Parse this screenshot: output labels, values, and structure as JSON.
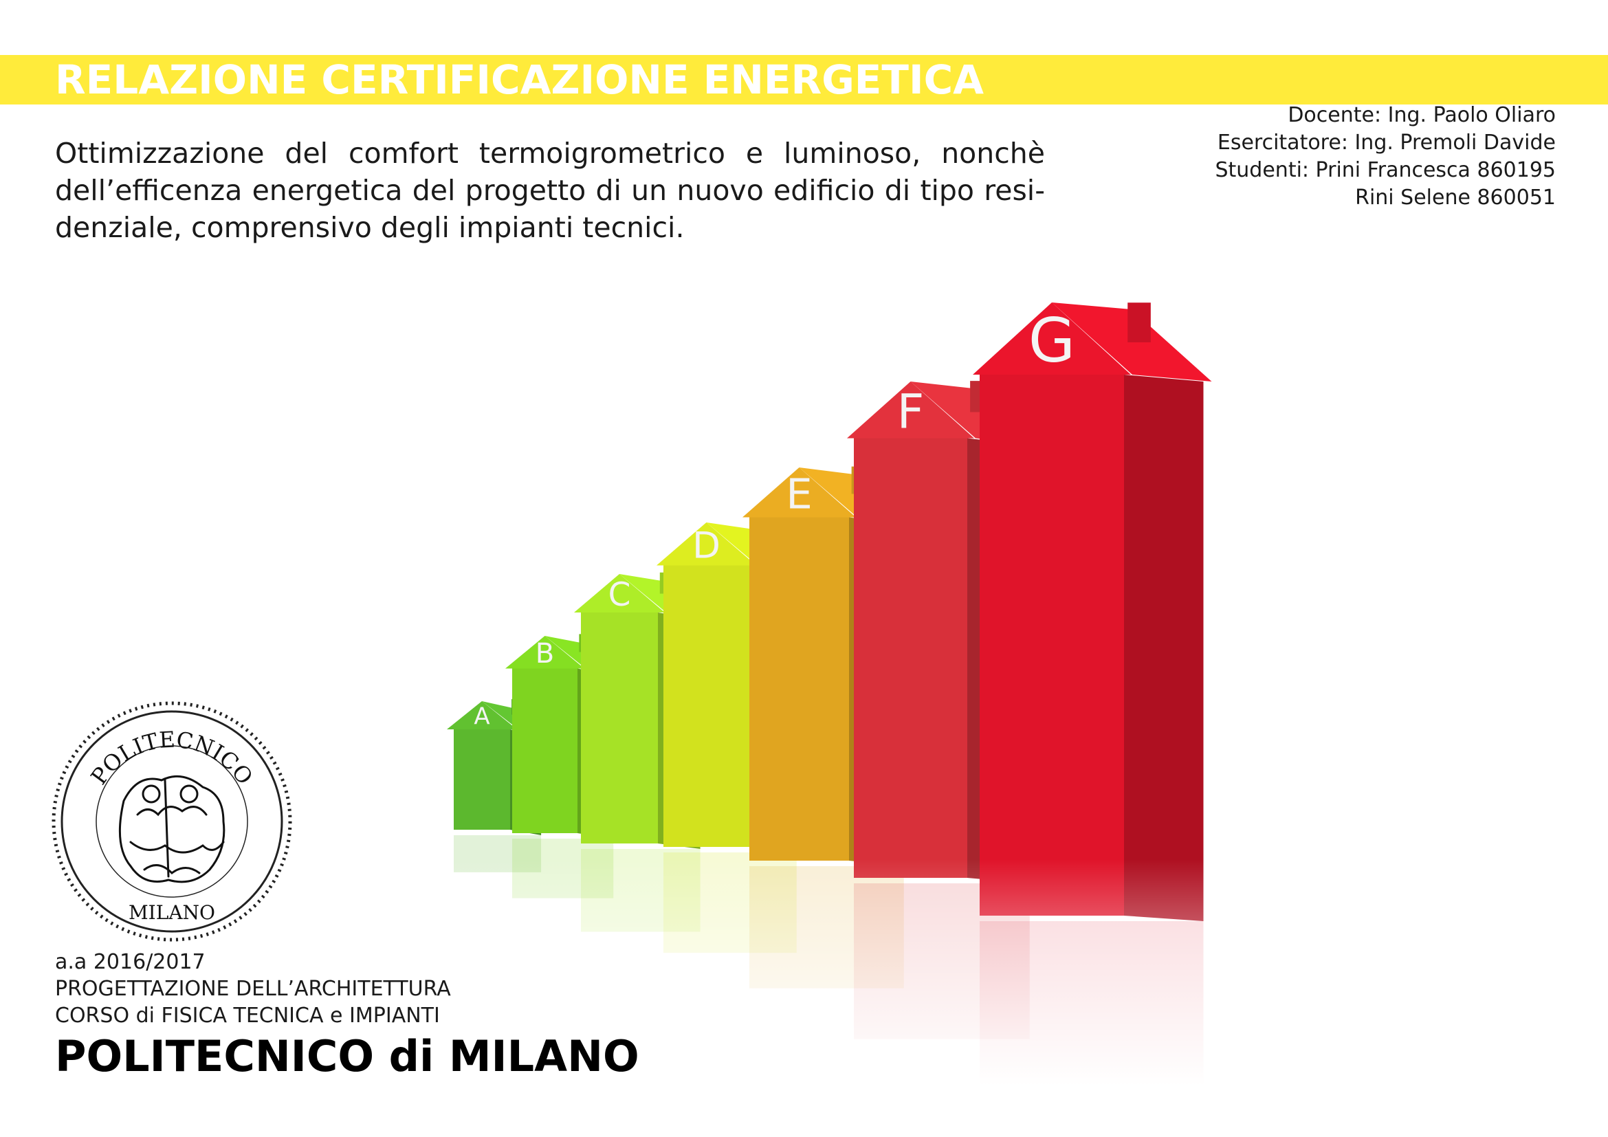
{
  "header": {
    "title": "RELAZIONE CERTIFICAZIONE ENERGETICA",
    "banner_color": "#ffeb3b"
  },
  "intro": {
    "text": "Ottimizzazione del comfort termoigrometrico e luminoso, nonchè dell’efficenza energetica del progetto di un nuovo edificio di tipo resi-denziale, comprensivo degli impianti tecnici."
  },
  "credits": {
    "lines": [
      "Docente: Ing. Paolo Oliaro",
      "Esercitatore: Ing. Premoli Davide",
      "Studenti: Prini Francesca 860195",
      "Rini Selene 860051"
    ]
  },
  "energy_classes": [
    {
      "label": "A",
      "color": "#5cb82e"
    },
    {
      "label": "B",
      "color": "#7fd420"
    },
    {
      "label": "C",
      "color": "#a6e226"
    },
    {
      "label": "D",
      "color": "#d2e21e"
    },
    {
      "label": "E",
      "color": "#e0a520"
    },
    {
      "label": "F",
      "color": "#d8303a"
    },
    {
      "label": "G",
      "color": "#e0142a"
    }
  ],
  "seal": {
    "top_text": "POLITECNICO",
    "bottom_text": "MILANO"
  },
  "footer": {
    "year": "a.a 2016/2017",
    "course1": "PROGETTAZIONE DELL’ARCHITETTURA",
    "course2": "CORSO di FISICA TECNICA e IMPIANTI",
    "institution": "POLITECNICO di MILANO"
  }
}
